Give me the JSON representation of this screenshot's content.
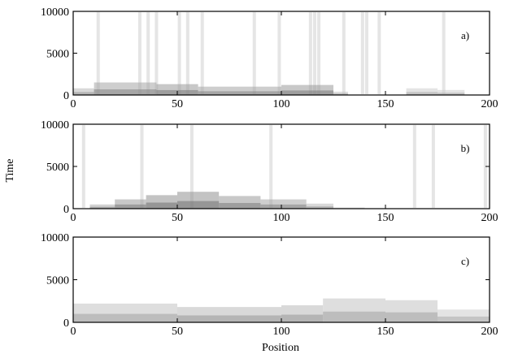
{
  "figure": {
    "ylabel": "Time",
    "xlabel": "Position"
  },
  "chart_data": [
    {
      "type": "heatmap",
      "panel_label": "a)",
      "xlim": [
        0,
        200
      ],
      "ylim": [
        0,
        10000
      ],
      "xticks": [
        0,
        50,
        100,
        150,
        200
      ],
      "yticks": [
        0,
        5000,
        10000
      ],
      "streaks": [
        12,
        32,
        36,
        40,
        51,
        55,
        62,
        87,
        99,
        114,
        116,
        118,
        130,
        139,
        141,
        147,
        178
      ],
      "bands": [
        {
          "x": [
            0,
            10
          ],
          "t": [
            0,
            800
          ],
          "shade": 0.35
        },
        {
          "x": [
            10,
            40
          ],
          "t": [
            0,
            1500
          ],
          "shade": 0.45
        },
        {
          "x": [
            40,
            60
          ],
          "t": [
            0,
            1300
          ],
          "shade": 0.5
        },
        {
          "x": [
            60,
            100
          ],
          "t": [
            0,
            1000
          ],
          "shade": 0.45
        },
        {
          "x": [
            100,
            125
          ],
          "t": [
            0,
            1200
          ],
          "shade": 0.5
        },
        {
          "x": [
            125,
            132
          ],
          "t": [
            0,
            400
          ],
          "shade": 0.3
        },
        {
          "x": [
            160,
            175
          ],
          "t": [
            0,
            800
          ],
          "shade": 0.25
        },
        {
          "x": [
            175,
            188
          ],
          "t": [
            0,
            600
          ],
          "shade": 0.25
        }
      ]
    },
    {
      "type": "heatmap",
      "panel_label": "b)",
      "xlim": [
        0,
        200
      ],
      "ylim": [
        0,
        10000
      ],
      "xticks": [
        0,
        50,
        100,
        150,
        200
      ],
      "yticks": [
        0,
        5000,
        10000
      ],
      "streaks": [
        5,
        33,
        57,
        95,
        164,
        173,
        198
      ],
      "bands": [
        {
          "x": [
            8,
            20
          ],
          "t": [
            0,
            500
          ],
          "shade": 0.4
        },
        {
          "x": [
            20,
            35
          ],
          "t": [
            0,
            1100
          ],
          "shade": 0.5
        },
        {
          "x": [
            35,
            50
          ],
          "t": [
            0,
            1600
          ],
          "shade": 0.55
        },
        {
          "x": [
            50,
            70
          ],
          "t": [
            0,
            2000
          ],
          "shade": 0.55
        },
        {
          "x": [
            70,
            90
          ],
          "t": [
            0,
            1500
          ],
          "shade": 0.5
        },
        {
          "x": [
            90,
            112
          ],
          "t": [
            0,
            1100
          ],
          "shade": 0.45
        },
        {
          "x": [
            112,
            125
          ],
          "t": [
            0,
            600
          ],
          "shade": 0.35
        },
        {
          "x": [
            125,
            140
          ],
          "t": [
            0,
            150
          ],
          "shade": 0.2
        }
      ]
    },
    {
      "type": "heatmap",
      "panel_label": "c)",
      "xlim": [
        0,
        200
      ],
      "ylim": [
        0,
        10000
      ],
      "xticks": [
        0,
        50,
        100,
        150,
        200
      ],
      "yticks": [
        0,
        5000,
        10000
      ],
      "streaks": [],
      "bands": [
        {
          "x": [
            0,
            50
          ],
          "t": [
            0,
            2200
          ],
          "shade": 0.3
        },
        {
          "x": [
            50,
            100
          ],
          "t": [
            0,
            1800
          ],
          "shade": 0.35
        },
        {
          "x": [
            100,
            120
          ],
          "t": [
            0,
            2000
          ],
          "shade": 0.35
        },
        {
          "x": [
            120,
            150
          ],
          "t": [
            0,
            2800
          ],
          "shade": 0.3
        },
        {
          "x": [
            150,
            175
          ],
          "t": [
            0,
            2600
          ],
          "shade": 0.3
        },
        {
          "x": [
            175,
            200
          ],
          "t": [
            0,
            1500
          ],
          "shade": 0.25
        }
      ]
    }
  ]
}
